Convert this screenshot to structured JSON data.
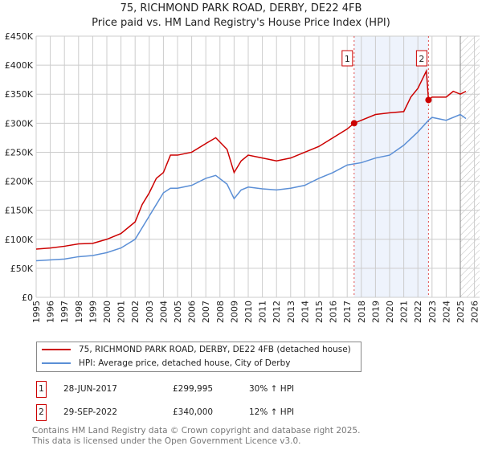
{
  "header": {
    "title": "75, RICHMOND PARK ROAD, DERBY, DE22 4FB",
    "subtitle": "Price paid vs. HM Land Registry's House Price Index (HPI)"
  },
  "chart_data": {
    "type": "line",
    "title": "75, RICHMOND PARK ROAD, DERBY, DE22 4FB",
    "ylim": [
      0,
      450000
    ],
    "xlim": [
      1995,
      2026
    ],
    "yticks": [
      "£0",
      "£50K",
      "£100K",
      "£150K",
      "£200K",
      "£250K",
      "£300K",
      "£350K",
      "£400K",
      "£450K"
    ],
    "xticks": [
      "1995",
      "1996",
      "1997",
      "1998",
      "1999",
      "2000",
      "2001",
      "2002",
      "2003",
      "2004",
      "2005",
      "2006",
      "2007",
      "2008",
      "2009",
      "2010",
      "2011",
      "2012",
      "2013",
      "2014",
      "2015",
      "2016",
      "2017",
      "2018",
      "2019",
      "2020",
      "2021",
      "2022",
      "2023",
      "2024",
      "2025",
      "2026"
    ],
    "series": [
      {
        "name": "75, RICHMOND PARK ROAD, DERBY, DE22 4FB (detached house)",
        "color": "#cc0000",
        "x": [
          1995,
          1996,
          1997,
          1998,
          1999,
          2000,
          2001,
          2002,
          2002.5,
          2003,
          2003.5,
          2004,
          2004.5,
          2005,
          2006,
          2007,
          2007.7,
          2008.5,
          2009,
          2009.5,
          2010,
          2011,
          2012,
          2013,
          2014,
          2015,
          2016,
          2017,
          2017.49,
          2018,
          2019,
          2020,
          2021,
          2021.5,
          2022,
          2022.6,
          2022.75,
          2023,
          2024,
          2024.5,
          2025,
          2025.4
        ],
        "values": [
          83000,
          85000,
          88000,
          92000,
          93000,
          100000,
          110000,
          130000,
          160000,
          180000,
          205000,
          215000,
          245000,
          245000,
          250000,
          265000,
          275000,
          255000,
          215000,
          235000,
          245000,
          240000,
          235000,
          240000,
          250000,
          260000,
          275000,
          290000,
          299995,
          305000,
          315000,
          318000,
          320000,
          345000,
          360000,
          390000,
          340000,
          345000,
          345000,
          355000,
          350000,
          355000
        ]
      },
      {
        "name": "HPI: Average price, detached house, City of Derby",
        "color": "#5b8fd6",
        "x": [
          1995,
          1997,
          1998,
          1999,
          2000,
          2001,
          2002,
          2003,
          2003.5,
          2004,
          2004.5,
          2005,
          2006,
          2007,
          2007.7,
          2008.5,
          2009,
          2009.5,
          2010,
          2011,
          2012,
          2013,
          2014,
          2015,
          2016,
          2017,
          2018,
          2019,
          2020,
          2021,
          2022,
          2022.75,
          2023,
          2024,
          2025,
          2025.4
        ],
        "values": [
          63000,
          66000,
          70000,
          72000,
          77000,
          85000,
          100000,
          140000,
          160000,
          180000,
          188000,
          188000,
          193000,
          205000,
          210000,
          195000,
          170000,
          185000,
          190000,
          187000,
          185000,
          188000,
          193000,
          205000,
          215000,
          228000,
          232000,
          240000,
          245000,
          262000,
          285000,
          305000,
          310000,
          305000,
          315000,
          308000
        ]
      }
    ],
    "annotations": [
      {
        "label": "1",
        "x": 2017.49,
        "value": 299995
      },
      {
        "label": "2",
        "x": 2022.75,
        "value": 340000
      }
    ],
    "shaded_range": [
      2017.49,
      2022.75
    ],
    "forecast_hatch_from": 2025
  },
  "legend": {
    "items": [
      "75, RICHMOND PARK ROAD, DERBY, DE22 4FB (detached house)",
      "HPI: Average price, detached house, City of Derby"
    ]
  },
  "transactions": [
    {
      "id": "1",
      "date": "28-JUN-2017",
      "price": "£299,995",
      "hpi": "30% ↑ HPI"
    },
    {
      "id": "2",
      "date": "29-SEP-2022",
      "price": "£340,000",
      "hpi": "12% ↑ HPI"
    }
  ],
  "footer": {
    "line1": "Contains HM Land Registry data © Crown copyright and database right 2025.",
    "line2": "This data is licensed under the Open Government Licence v3.0."
  }
}
